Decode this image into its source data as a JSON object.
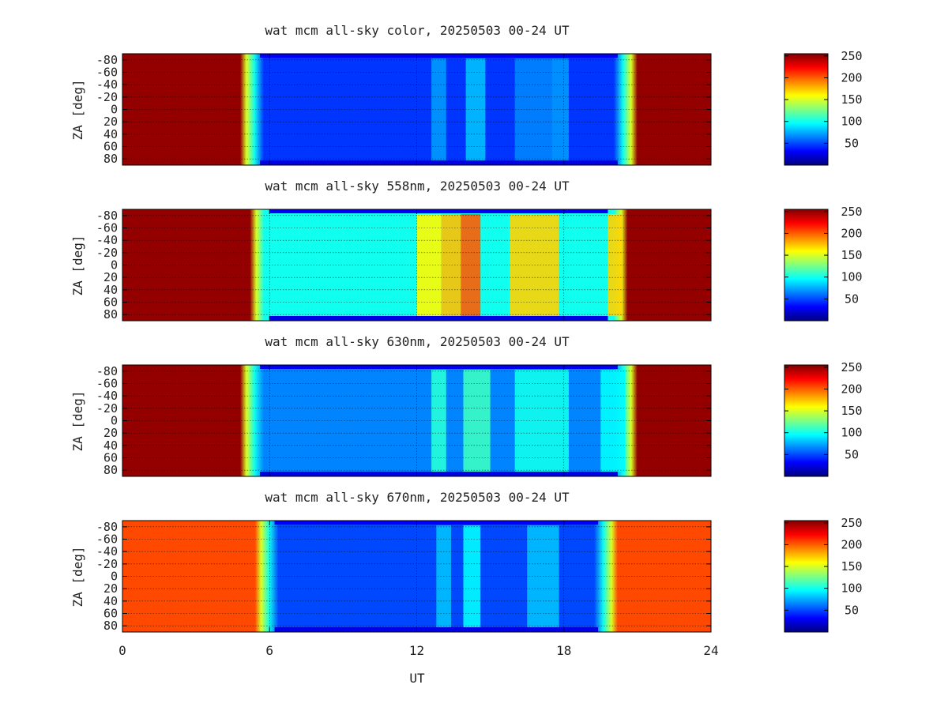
{
  "chart_data": [
    {
      "type": "heatmap",
      "title": "wat mcm all-sky color, 20250503 00-24 UT",
      "ylabel": "ZA [deg]",
      "x_ticks": [
        "0",
        "6",
        "12",
        "18",
        "24"
      ],
      "y_ticks": [
        "-80",
        "-60",
        "-40",
        "-20",
        "0",
        "20",
        "40",
        "60",
        "80"
      ],
      "xlim": [
        0,
        24
      ],
      "ylim": [
        -90,
        90
      ],
      "colorbar_ticks": [
        "50",
        "100",
        "150",
        "200",
        "250"
      ],
      "clim": [
        0,
        255
      ],
      "colormap": "jet",
      "grid": true,
      "day_start_ut": 4.8,
      "day_end_ut": 21.0,
      "daytime_level": 250,
      "night_background_level": 45,
      "band_levels": [
        {
          "ut_start": 12.6,
          "ut_end": 13.2,
          "level": 70
        },
        {
          "ut_start": 14.0,
          "ut_end": 14.8,
          "level": 80
        },
        {
          "ut_start": 16.0,
          "ut_end": 17.5,
          "level": 65
        },
        {
          "ut_start": 17.5,
          "ut_end": 18.2,
          "level": 70
        }
      ]
    },
    {
      "type": "heatmap",
      "title": "wat mcm all-sky 558nm, 20250503 00-24 UT",
      "ylabel": "ZA [deg]",
      "x_ticks": [
        "0",
        "6",
        "12",
        "18",
        "24"
      ],
      "y_ticks": [
        "-80",
        "-60",
        "-40",
        "-20",
        "0",
        "20",
        "40",
        "60",
        "80"
      ],
      "xlim": [
        0,
        24
      ],
      "ylim": [
        -90,
        90
      ],
      "colorbar_ticks": [
        "50",
        "100",
        "150",
        "200",
        "250"
      ],
      "clim": [
        0,
        255
      ],
      "colormap": "jet",
      "grid": true,
      "day_start_ut": 5.2,
      "day_end_ut": 20.6,
      "daytime_level": 250,
      "night_background_level": 100,
      "band_levels": [
        {
          "ut_start": 12.0,
          "ut_end": 13.0,
          "level": 160
        },
        {
          "ut_start": 13.0,
          "ut_end": 13.8,
          "level": 175
        },
        {
          "ut_start": 13.8,
          "ut_end": 14.6,
          "level": 200
        },
        {
          "ut_start": 15.8,
          "ut_end": 17.8,
          "level": 170
        },
        {
          "ut_start": 19.8,
          "ut_end": 20.4,
          "level": 170
        }
      ]
    },
    {
      "type": "heatmap",
      "title": "wat mcm all-sky 630nm, 20250503 00-24 UT",
      "ylabel": "ZA [deg]",
      "x_ticks": [
        "0",
        "6",
        "12",
        "18",
        "24"
      ],
      "y_ticks": [
        "-80",
        "-60",
        "-40",
        "-20",
        "0",
        "20",
        "40",
        "60",
        "80"
      ],
      "xlim": [
        0,
        24
      ],
      "ylim": [
        -90,
        90
      ],
      "colorbar_ticks": [
        "50",
        "100",
        "150",
        "200",
        "250"
      ],
      "clim": [
        0,
        255
      ],
      "colormap": "jet",
      "grid": true,
      "day_start_ut": 4.8,
      "day_end_ut": 21.0,
      "daytime_level": 250,
      "night_background_level": 65,
      "band_levels": [
        {
          "ut_start": 12.6,
          "ut_end": 13.2,
          "level": 105
        },
        {
          "ut_start": 13.9,
          "ut_end": 15.0,
          "level": 110
        },
        {
          "ut_start": 16.0,
          "ut_end": 18.2,
          "level": 100
        },
        {
          "ut_start": 19.5,
          "ut_end": 20.5,
          "level": 95
        }
      ]
    },
    {
      "type": "heatmap",
      "title": "wat mcm all-sky 670nm, 20250503 00-24 UT",
      "ylabel": "ZA [deg]",
      "xlabel": "UT",
      "x_ticks": [
        "0",
        "6",
        "12",
        "18",
        "24"
      ],
      "y_ticks": [
        "-80",
        "-60",
        "-40",
        "-20",
        "0",
        "20",
        "40",
        "60",
        "80"
      ],
      "xlim": [
        0,
        24
      ],
      "ylim": [
        -90,
        90
      ],
      "colorbar_ticks": [
        "50",
        "100",
        "150",
        "200",
        "250"
      ],
      "clim": [
        0,
        255
      ],
      "colormap": "jet",
      "grid": true,
      "day_start_ut": 5.4,
      "day_end_ut": 20.2,
      "daytime_level": 205,
      "night_background_level": 50,
      "band_levels": [
        {
          "ut_start": 12.8,
          "ut_end": 13.4,
          "level": 80
        },
        {
          "ut_start": 13.9,
          "ut_end": 14.6,
          "level": 95
        },
        {
          "ut_start": 16.5,
          "ut_end": 17.8,
          "level": 80
        }
      ]
    }
  ]
}
